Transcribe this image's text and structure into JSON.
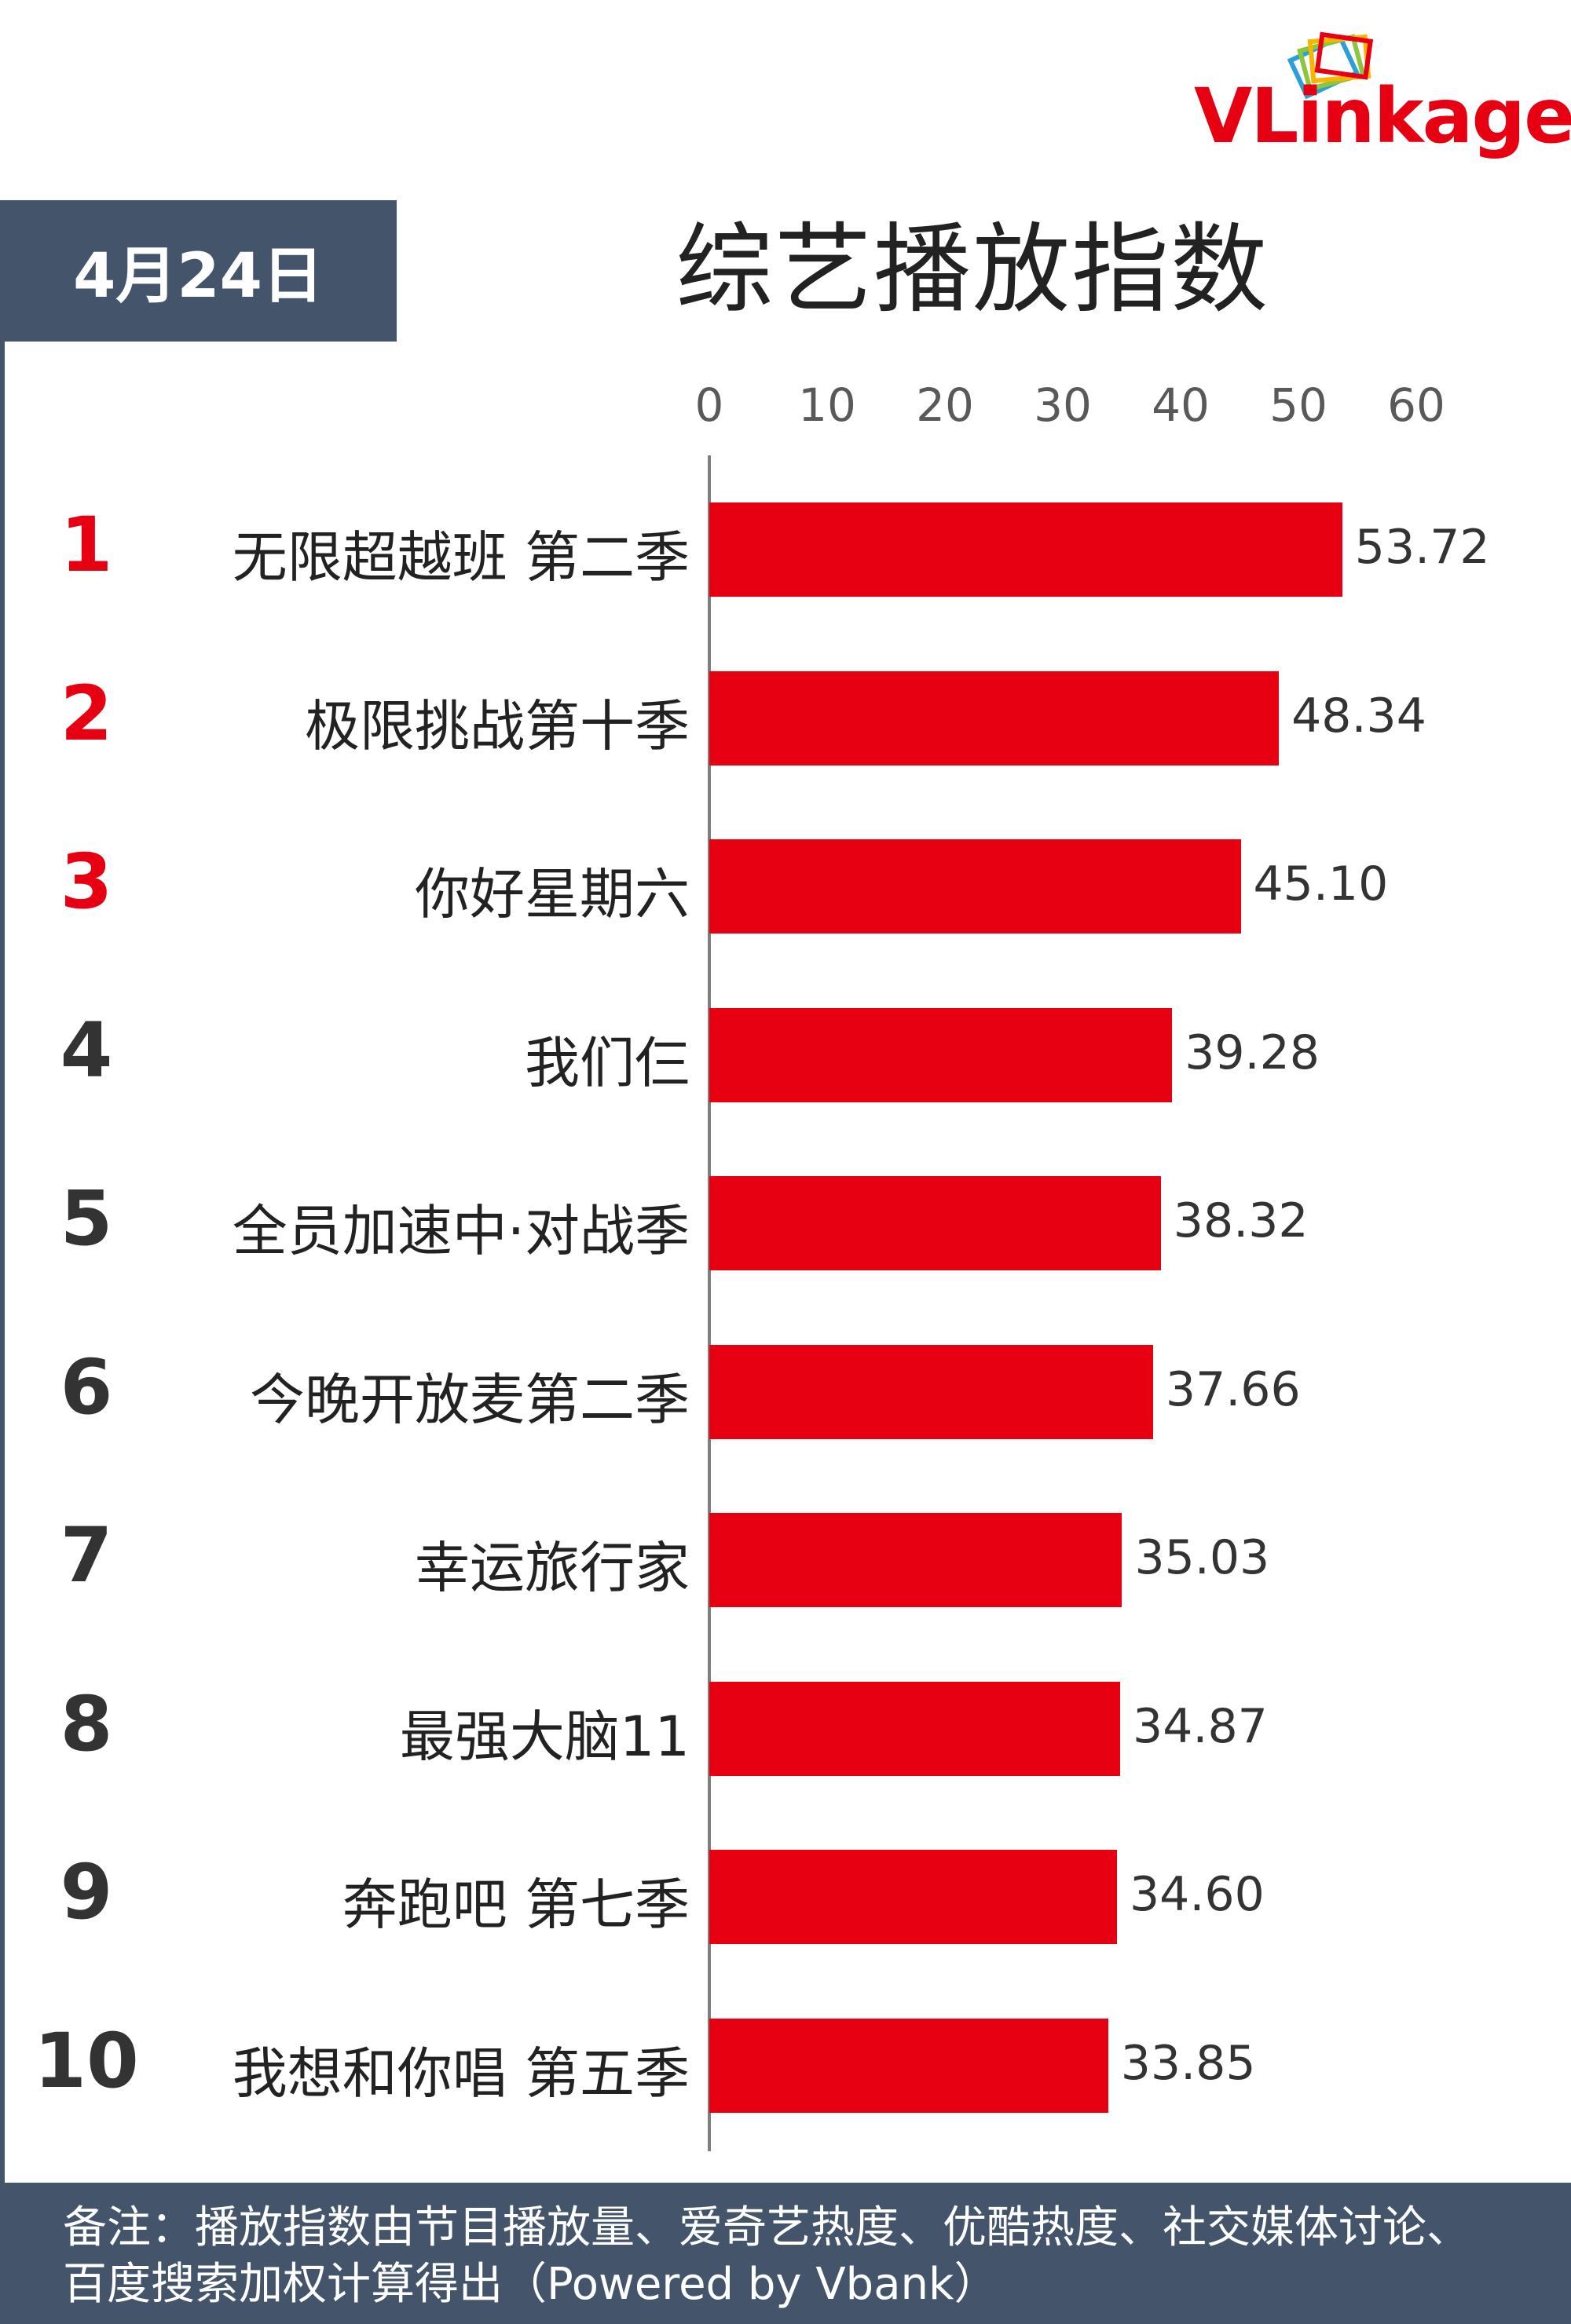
{
  "logo": {
    "v": "V",
    "rest": "Linkage"
  },
  "date": "4月24日",
  "title": "综艺播放指数",
  "chart_data": {
    "type": "bar",
    "orientation": "horizontal",
    "title": "综艺播放指数",
    "xlim": [
      0,
      60
    ],
    "xticks": [
      "0",
      "10",
      "20",
      "30",
      "40",
      "50",
      "60"
    ],
    "categories": [
      "无限超越班 第二季",
      "极限挑战第十季",
      "你好星期六",
      "我们仨",
      "全员加速中·对战季",
      "今晚开放麦第二季",
      "幸运旅行家",
      "最强大脑11",
      "奔跑吧 第七季",
      "我想和你唱 第五季"
    ],
    "ranks": [
      "1",
      "2",
      "3",
      "4",
      "5",
      "6",
      "7",
      "8",
      "9",
      "10"
    ],
    "values": [
      53.72,
      48.34,
      45.1,
      39.28,
      38.32,
      37.66,
      35.03,
      34.87,
      34.6,
      33.85
    ],
    "value_labels": [
      "53.72",
      "48.34",
      "45.10",
      "39.28",
      "38.32",
      "37.66",
      "35.03",
      "34.87",
      "34.60",
      "33.85"
    ],
    "bar_color": "#e60012",
    "top_rank_color": "#e60012",
    "rank_color": "#333333",
    "grid": false
  },
  "footer": {
    "note": "备注：播放指数由节目播放量、爱奇艺热度、优酷热度、社交媒体讨论、百度搜索加权计算得出（Powered by Vbank）"
  }
}
